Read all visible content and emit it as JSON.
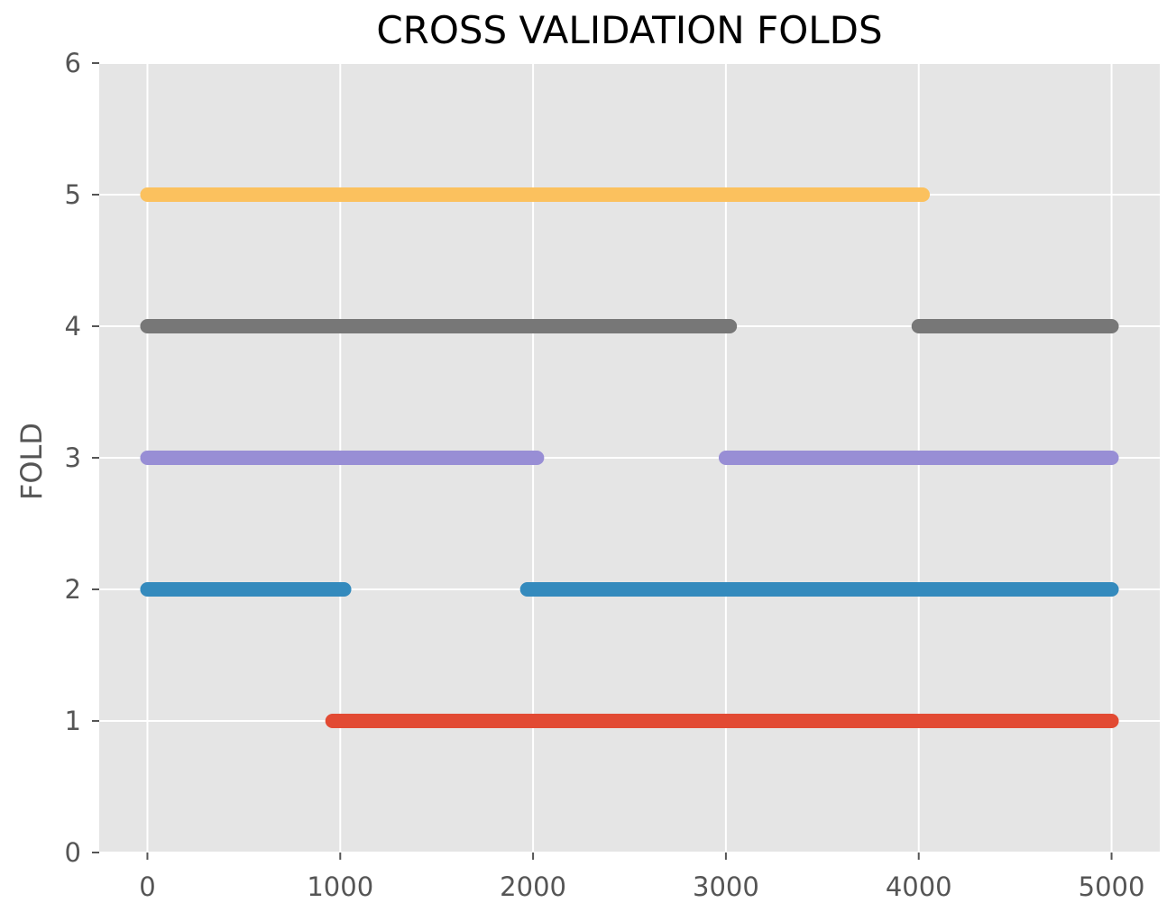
{
  "chart_data": {
    "type": "scatter",
    "title": "CROSS VALIDATION FOLDS",
    "xlabel": "",
    "ylabel": "FOLD",
    "xlim": [
      -250,
      5250
    ],
    "ylim": [
      0,
      6
    ],
    "xticks": [
      0,
      1000,
      2000,
      3000,
      4000,
      5000
    ],
    "yticks": [
      0,
      1,
      2,
      3,
      4,
      5,
      6
    ],
    "grid": true,
    "background": "#e5e5e5",
    "grid_color": "#ffffff",
    "series": [
      {
        "y": 1,
        "color": "#e24a33",
        "segments": [
          [
            960,
            5000
          ]
        ]
      },
      {
        "y": 2,
        "color": "#348abd",
        "segments": [
          [
            0,
            1020
          ],
          [
            1970,
            5000
          ]
        ]
      },
      {
        "y": 3,
        "color": "#988ed5",
        "segments": [
          [
            0,
            2020
          ],
          [
            3000,
            5000
          ]
        ]
      },
      {
        "y": 4,
        "color": "#777777",
        "segments": [
          [
            0,
            3020
          ],
          [
            4000,
            5000
          ]
        ]
      },
      {
        "y": 5,
        "color": "#fbc15e",
        "segments": [
          [
            0,
            4020
          ]
        ]
      }
    ]
  }
}
